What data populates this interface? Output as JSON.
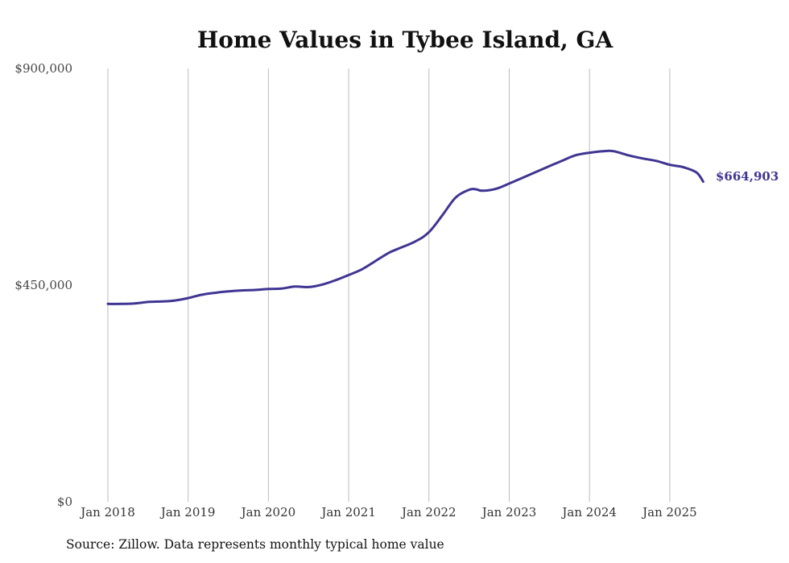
{
  "chart_data": {
    "type": "line",
    "title": "Home Values in Tybee Island, GA",
    "xlabel": "",
    "ylabel": "",
    "ylim": [
      0,
      900000
    ],
    "yticks": [
      {
        "value": 0,
        "label": "$0"
      },
      {
        "value": 450000,
        "label": "$450,000"
      },
      {
        "value": 900000,
        "label": "$900,000"
      }
    ],
    "xticks": [
      {
        "year": 2018,
        "label": "Jan 2018"
      },
      {
        "year": 2019,
        "label": "Jan 2019"
      },
      {
        "year": 2020,
        "label": "Jan 2020"
      },
      {
        "year": 2021,
        "label": "Jan 2021"
      },
      {
        "year": 2022,
        "label": "Jan 2022"
      },
      {
        "year": 2023,
        "label": "Jan 2023"
      },
      {
        "year": 2024,
        "label": "Jan 2024"
      },
      {
        "year": 2025,
        "label": "Jan 2025"
      }
    ],
    "xlim": [
      "2018-01",
      "2025-06"
    ],
    "grid": "vertical lines at each January",
    "line_color": "#3f3592",
    "end_label": "$664,903",
    "series": [
      {
        "x": [
          "2018-01",
          "2018-03",
          "2018-05",
          "2018-07",
          "2018-09",
          "2018-11",
          "2019-01",
          "2019-03",
          "2019-05",
          "2019-07",
          "2019-09",
          "2019-11",
          "2020-01",
          "2020-03",
          "2020-05",
          "2020-07",
          "2020-09",
          "2020-11",
          "2021-01",
          "2021-03",
          "2021-05",
          "2021-07",
          "2021-09",
          "2021-11",
          "2022-01",
          "2022-03",
          "2022-05",
          "2022-07",
          "2022-08",
          "2022-09",
          "2022-11",
          "2023-01",
          "2023-03",
          "2023-05",
          "2023-07",
          "2023-09",
          "2023-11",
          "2024-01",
          "2024-03",
          "2024-04",
          "2024-05",
          "2024-07",
          "2024-09",
          "2024-11",
          "2025-01",
          "2025-03",
          "2025-05",
          "2025-06"
        ],
        "values": [
          411000,
          411000,
          412000,
          415000,
          416000,
          418000,
          423000,
          430000,
          434000,
          437000,
          439000,
          440000,
          442000,
          443000,
          447000,
          446000,
          451000,
          460000,
          471000,
          483000,
          500000,
          517000,
          529000,
          541000,
          560000,
          595000,
          632000,
          648000,
          649000,
          646000,
          650000,
          661000,
          673000,
          685000,
          697000,
          709000,
          720000,
          725000,
          728000,
          729000,
          727000,
          719000,
          713000,
          708000,
          700000,
          695000,
          684000,
          664903
        ]
      }
    ]
  },
  "footer": {
    "source": "Source: Zillow. Data represents monthly typical home value"
  }
}
